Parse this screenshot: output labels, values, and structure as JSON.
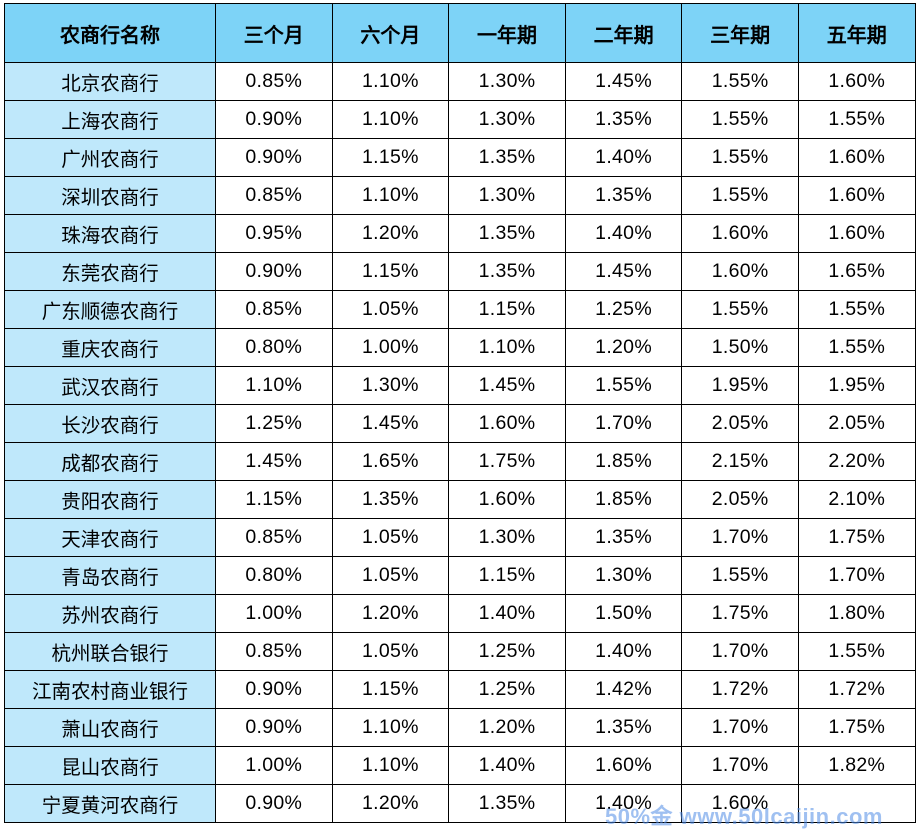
{
  "colors": {
    "header_bg": "#7dd3f7",
    "name_bg": "#bfe8fb"
  },
  "table": {
    "headers": [
      "农商行名称",
      "三个月",
      "六个月",
      "一年期",
      "二年期",
      "三年期",
      "五年期"
    ],
    "rows": [
      [
        "北京农商行",
        "0.85%",
        "1.10%",
        "1.30%",
        "1.45%",
        "1.55%",
        "1.60%"
      ],
      [
        "上海农商行",
        "0.90%",
        "1.10%",
        "1.30%",
        "1.35%",
        "1.55%",
        "1.55%"
      ],
      [
        "广州农商行",
        "0.90%",
        "1.15%",
        "1.35%",
        "1.40%",
        "1.55%",
        "1.60%"
      ],
      [
        "深圳农商行",
        "0.85%",
        "1.10%",
        "1.30%",
        "1.35%",
        "1.55%",
        "1.60%"
      ],
      [
        "珠海农商行",
        "0.95%",
        "1.20%",
        "1.35%",
        "1.40%",
        "1.60%",
        "1.60%"
      ],
      [
        "东莞农商行",
        "0.90%",
        "1.15%",
        "1.35%",
        "1.45%",
        "1.60%",
        "1.65%"
      ],
      [
        "广东顺德农商行",
        "0.85%",
        "1.05%",
        "1.15%",
        "1.25%",
        "1.55%",
        "1.55%"
      ],
      [
        "重庆农商行",
        "0.80%",
        "1.00%",
        "1.10%",
        "1.20%",
        "1.50%",
        "1.55%"
      ],
      [
        "武汉农商行",
        "1.10%",
        "1.30%",
        "1.45%",
        "1.55%",
        "1.95%",
        "1.95%"
      ],
      [
        "长沙农商行",
        "1.25%",
        "1.45%",
        "1.60%",
        "1.70%",
        "2.05%",
        "2.05%"
      ],
      [
        "成都农商行",
        "1.45%",
        "1.65%",
        "1.75%",
        "1.85%",
        "2.15%",
        "2.20%"
      ],
      [
        "贵阳农商行",
        "1.15%",
        "1.35%",
        "1.60%",
        "1.85%",
        "2.05%",
        "2.10%"
      ],
      [
        "天津农商行",
        "0.85%",
        "1.05%",
        "1.30%",
        "1.35%",
        "1.70%",
        "1.75%"
      ],
      [
        "青岛农商行",
        "0.80%",
        "1.05%",
        "1.15%",
        "1.30%",
        "1.55%",
        "1.70%"
      ],
      [
        "苏州农商行",
        "1.00%",
        "1.20%",
        "1.40%",
        "1.50%",
        "1.75%",
        "1.80%"
      ],
      [
        "杭州联合银行",
        "0.85%",
        "1.05%",
        "1.25%",
        "1.40%",
        "1.70%",
        "1.55%"
      ],
      [
        "江南农村商业银行",
        "0.90%",
        "1.15%",
        "1.25%",
        "1.42%",
        "1.72%",
        "1.72%"
      ],
      [
        "萧山农商行",
        "0.90%",
        "1.10%",
        "1.20%",
        "1.35%",
        "1.70%",
        "1.75%"
      ],
      [
        "昆山农商行",
        "1.00%",
        "1.10%",
        "1.40%",
        "1.60%",
        "1.70%",
        "1.82%"
      ],
      [
        "宁夏黄河农商行",
        "0.90%",
        "1.20%",
        "1.35%",
        "1.40%",
        "1.60%",
        ""
      ]
    ]
  },
  "watermark": {
    "text": "50%金 www.50lcaijin.com"
  }
}
